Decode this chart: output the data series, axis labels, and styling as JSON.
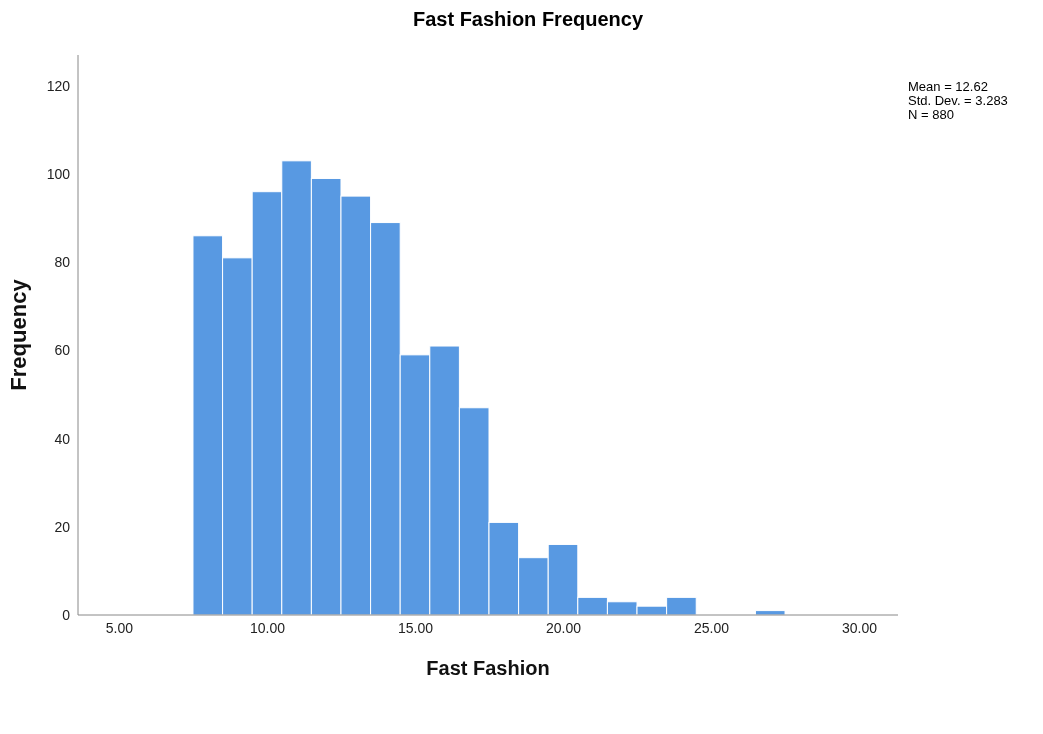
{
  "chart_data": {
    "type": "histogram",
    "title": "Fast Fashion Frequency",
    "xlabel": "Fast Fashion",
    "ylabel": "Frequency",
    "bins": [
      7.5,
      8.5,
      9.5,
      10.5,
      11.5,
      12.5,
      13.5,
      14.5,
      15.5,
      16.5,
      17.5,
      18.5,
      19.5,
      20.5,
      21.5,
      22.5,
      23.5,
      24.5,
      25.5,
      26.5,
      27.5
    ],
    "values": [
      86,
      81,
      96,
      103,
      99,
      95,
      89,
      59,
      61,
      47,
      21,
      13,
      16,
      4,
      3,
      2,
      4,
      0,
      0,
      1
    ],
    "color": "#5899e2",
    "xlim": [
      3.6,
      31.3
    ],
    "xticks": [
      {
        "value": 5,
        "label": "5.00"
      },
      {
        "value": 10,
        "label": "10.00"
      },
      {
        "value": 15,
        "label": "15.00"
      },
      {
        "value": 20,
        "label": "20.00"
      },
      {
        "value": 25,
        "label": "25.00"
      },
      {
        "value": 30,
        "label": "30.00"
      }
    ],
    "ylim": [
      0,
      127
    ],
    "yticks": [
      0,
      20,
      40,
      60,
      80,
      100,
      120
    ],
    "grid": false,
    "annotations": [
      "Mean = 12.62",
      "Std. Dev. = 3.283",
      "N = 880"
    ]
  }
}
